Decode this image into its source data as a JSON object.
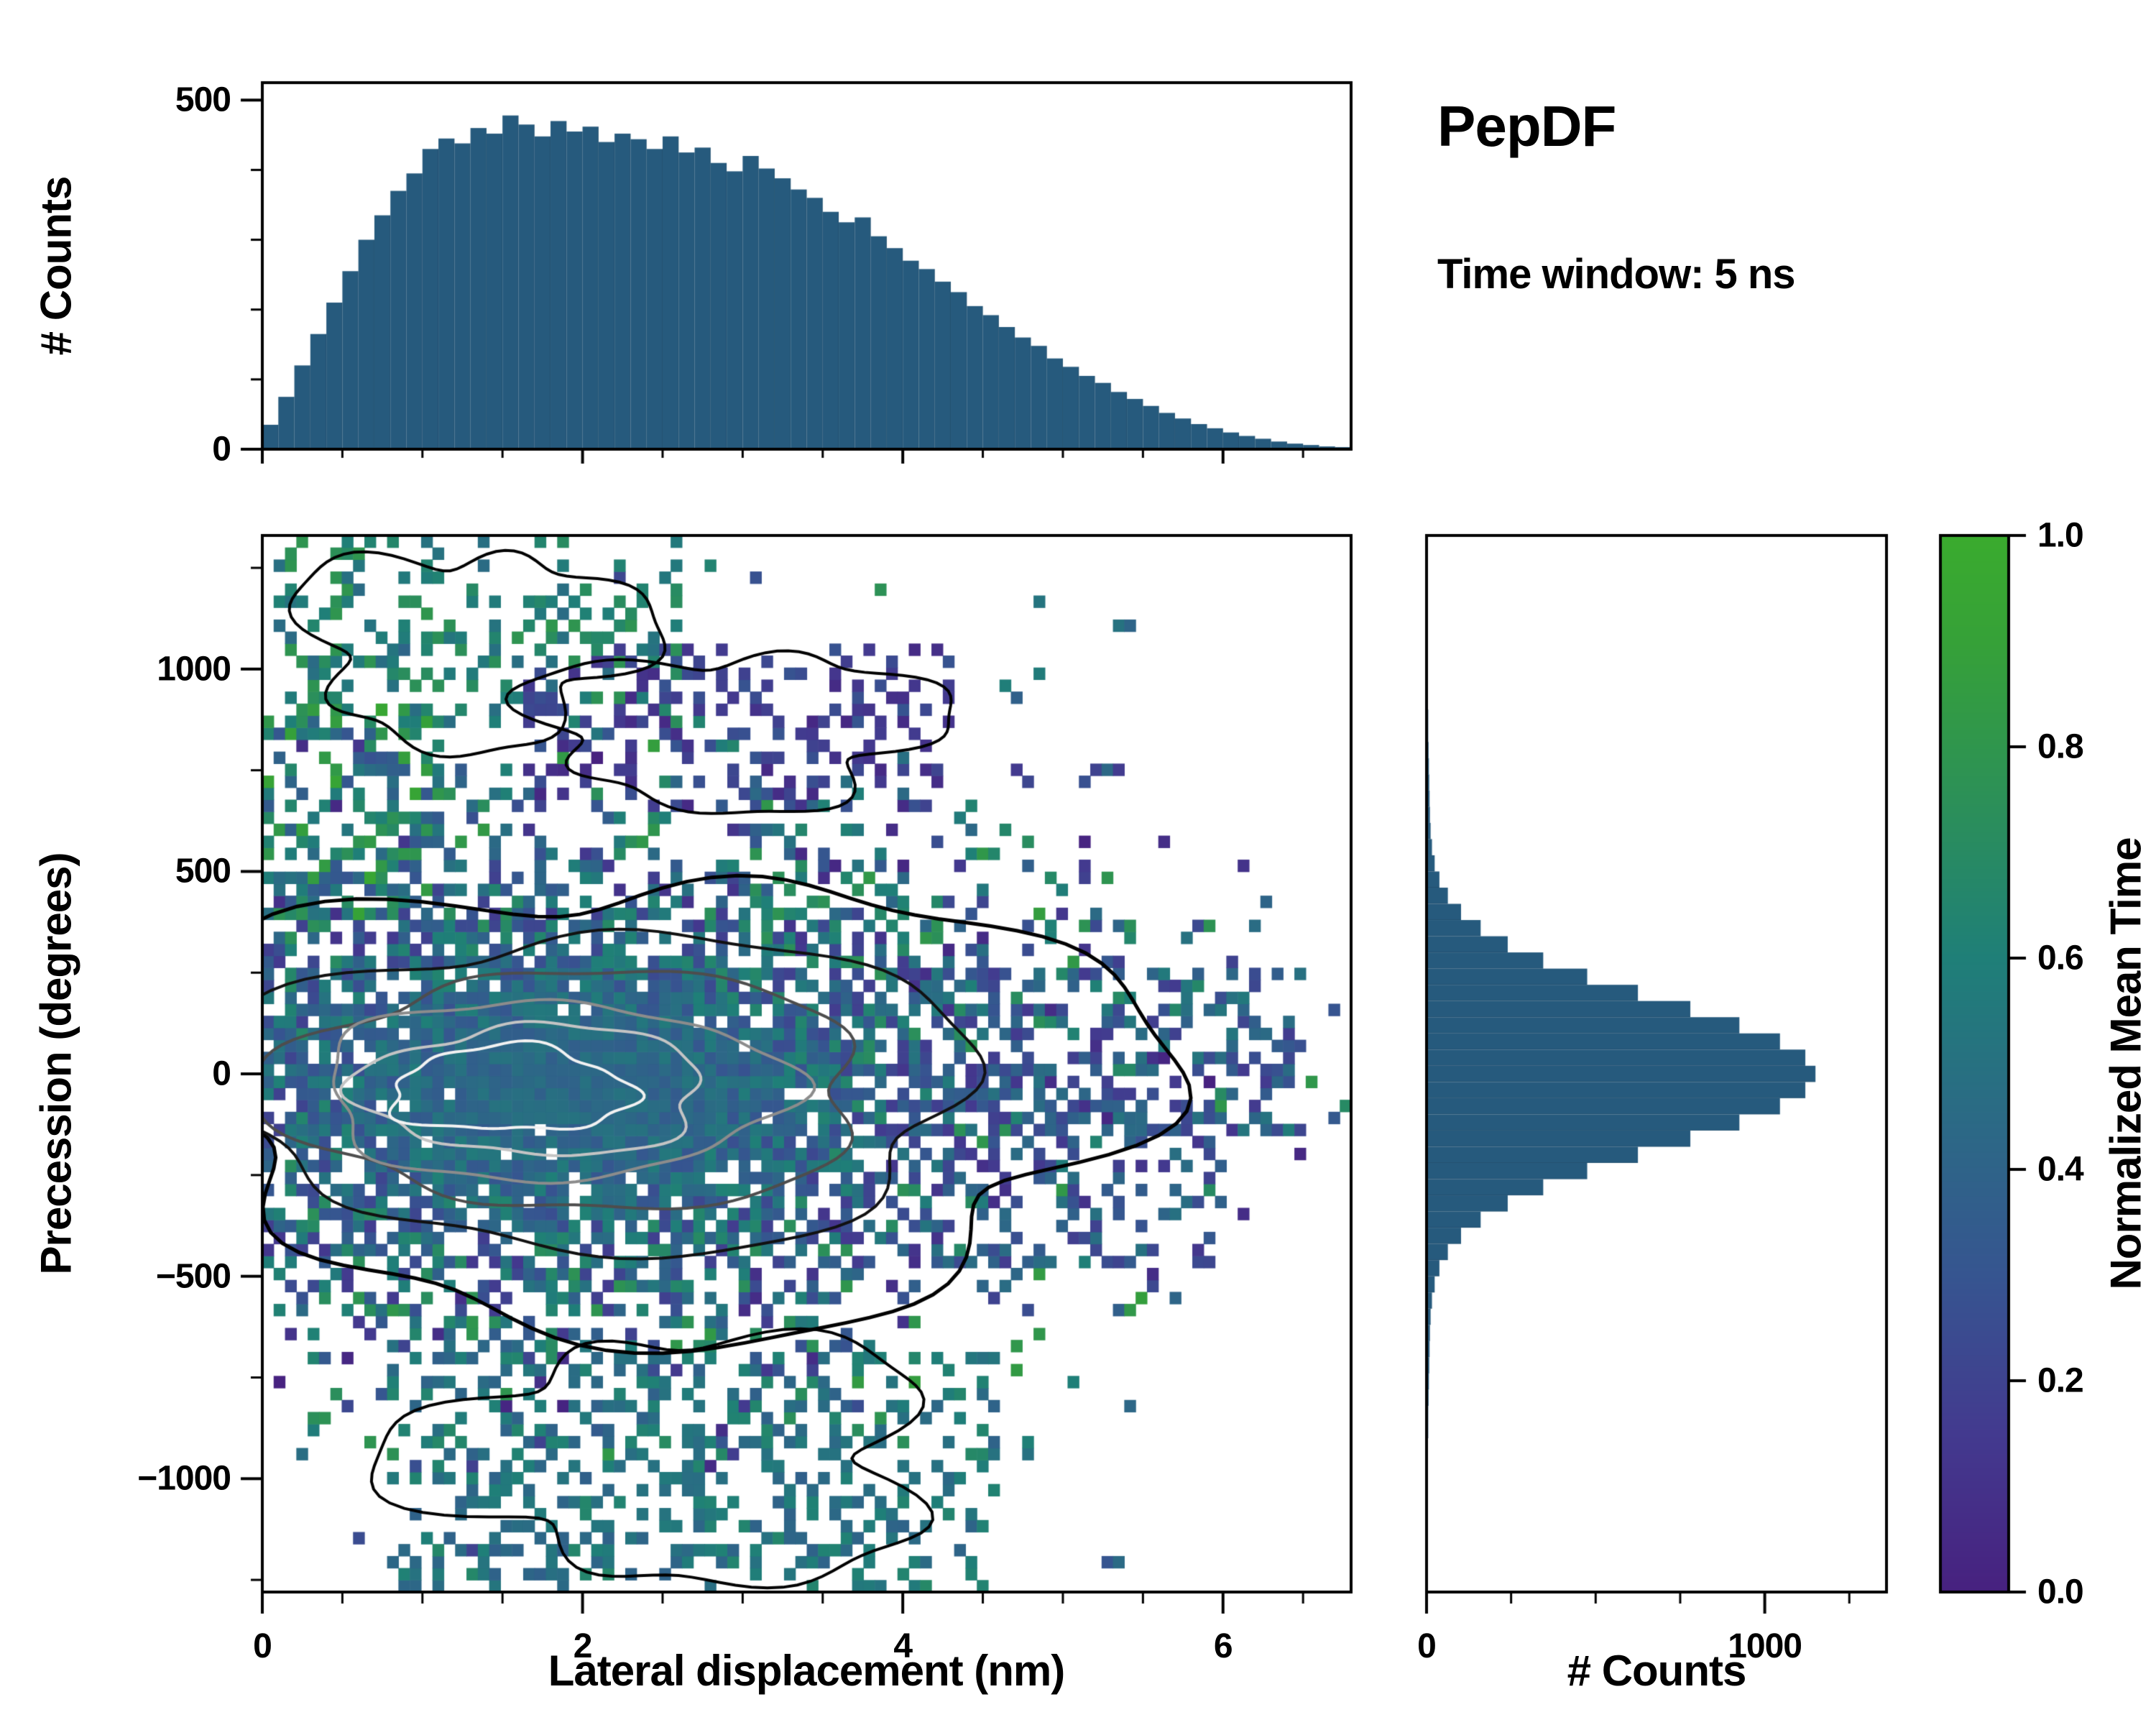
{
  "title": {
    "text": "PepDF",
    "subtitle": "Time window: 5 ns"
  },
  "colorbar": {
    "label": "Normalized Mean Time",
    "ticks": [
      0.0,
      0.2,
      0.4,
      0.6,
      0.8,
      1.0
    ],
    "range": [
      0,
      1
    ],
    "stops": [
      [
        0.0,
        "#47217f"
      ],
      [
        0.15,
        "#433a8f"
      ],
      [
        0.3,
        "#365590"
      ],
      [
        0.45,
        "#2b6a85"
      ],
      [
        0.6,
        "#1f7f78"
      ],
      [
        0.75,
        "#2c9058"
      ],
      [
        0.9,
        "#36a138"
      ],
      [
        1.0,
        "#3aab2e"
      ]
    ]
  },
  "chart_data": [
    {
      "type": "bar",
      "role": "top_marginal_histogram",
      "title": "",
      "xlabel": "",
      "ylabel": "# Counts",
      "x_range": [
        0,
        6.8
      ],
      "ylim": [
        0,
        525
      ],
      "bin_start": 0,
      "bin_width": 0.1,
      "bar_color": "#265a7d",
      "yticks": [
        0,
        500
      ],
      "xticks": [
        0,
        2,
        4,
        6
      ],
      "values": [
        35,
        75,
        120,
        165,
        210,
        255,
        300,
        335,
        370,
        395,
        430,
        445,
        438,
        460,
        452,
        478,
        465,
        448,
        470,
        455,
        462,
        440,
        452,
        444,
        430,
        448,
        425,
        432,
        410,
        398,
        420,
        402,
        388,
        372,
        360,
        340,
        325,
        332,
        305,
        288,
        270,
        258,
        240,
        225,
        205,
        192,
        175,
        160,
        148,
        130,
        118,
        105,
        95,
        82,
        72,
        62,
        52,
        44,
        36,
        30,
        24,
        19,
        15,
        11,
        8,
        6,
        4,
        3
      ]
    },
    {
      "type": "heatmap",
      "role": "joint_2d_histogram",
      "xlabel": "Lateral displacement (nm)",
      "ylabel": "Precession (degrees)",
      "x_range": [
        0,
        6.8
      ],
      "y_range": [
        -1280,
        1330
      ],
      "xticks": [
        0,
        2,
        4,
        6
      ],
      "yticks": [
        -1000,
        -500,
        0,
        500,
        1000
      ],
      "color_meaning": "Normalized Mean Time",
      "generation": {
        "seed": 1337,
        "nx": 96,
        "ny": 88,
        "core": {
          "cx": 1.9,
          "cy": -30,
          "sx": 1.5,
          "sy": 310
        },
        "fill_power": 0.55,
        "fill_gain": 1.12,
        "value_center": 0.44,
        "spread_core": 0.12,
        "spread_edge": 0.9,
        "hole_prob": 0.02,
        "scatter": {
          "p": 0.012,
          "x": [
            0,
            5.6
          ],
          "y": [
            -1250,
            1300
          ],
          "v": [
            0.2,
            0.8
          ]
        },
        "clusters": [
          {
            "x": [
              0.1,
              2.6
            ],
            "y": [
              850,
              1330
            ],
            "p": 0.32,
            "v": [
              0.45,
              0.8
            ]
          },
          {
            "x": [
              1.6,
              4.3
            ],
            "y": [
              640,
              1060
            ],
            "p": 0.3,
            "v": [
              0.04,
              0.3
            ]
          },
          {
            "x": [
              0.0,
              1.1
            ],
            "y": [
              380,
              900
            ],
            "p": 0.36,
            "v": [
              0.3,
              0.95
            ]
          },
          {
            "x": [
              0.8,
              4.6
            ],
            "y": [
              -1330,
              -680
            ],
            "p": 0.28,
            "v": [
              0.38,
              0.68
            ]
          },
          {
            "x": [
              3.9,
              6.5
            ],
            "y": [
              -140,
              260
            ],
            "p": 0.3,
            "v": [
              0.12,
              0.55
            ]
          },
          {
            "x": [
              4.2,
              6.0
            ],
            "y": [
              -470,
              -120
            ],
            "p": 0.22,
            "v": [
              0.08,
              0.5
            ]
          }
        ]
      },
      "contours": [
        {
          "cx": 2.5,
          "cy": -60,
          "rx": 3.0,
          "ry": 560,
          "color": "#000000",
          "width": 5,
          "wobble": 0.2
        },
        {
          "cx": 2.1,
          "cy": -40,
          "rx": 2.35,
          "ry": 390,
          "color": "#111111",
          "width": 4,
          "wobble": 0.14
        },
        {
          "cx": 1.95,
          "cy": -40,
          "rx": 1.85,
          "ry": 295,
          "color": "#4d4d4d",
          "width": 4,
          "wobble": 0.13
        },
        {
          "cx": 1.8,
          "cy": -40,
          "rx": 1.45,
          "ry": 220,
          "color": "#8c8c8c",
          "width": 4,
          "wobble": 0.13
        },
        {
          "cx": 1.7,
          "cy": -40,
          "rx": 1.08,
          "ry": 160,
          "color": "#c4c4c4",
          "width": 4,
          "wobble": 0.14
        },
        {
          "cx": 1.55,
          "cy": -40,
          "rx": 0.75,
          "ry": 105,
          "color": "#f2f2f2",
          "width": 4,
          "wobble": 0.18
        },
        {
          "cx": 1.3,
          "cy": 1060,
          "rx": 1.05,
          "ry": 240,
          "color": "#000000",
          "width": 4,
          "wobble": 0.3
        },
        {
          "cx": 2.95,
          "cy": 855,
          "rx": 1.25,
          "ry": 190,
          "color": "#000000",
          "width": 4,
          "wobble": 0.28
        },
        {
          "cx": 2.6,
          "cy": -950,
          "rx": 1.6,
          "ry": 300,
          "color": "#000000",
          "width": 4,
          "wobble": 0.3
        }
      ]
    },
    {
      "type": "bar",
      "role": "right_marginal_histogram",
      "orientation": "horizontal",
      "xlabel": "# Counts",
      "ylabel": "",
      "xlim": [
        0,
        1360
      ],
      "bin_start": -1300,
      "bin_width": 40,
      "bar_color": "#265a7d",
      "xticks": [
        0,
        1000
      ],
      "values": [
        1,
        1,
        1,
        1,
        2,
        2,
        3,
        3,
        4,
        4,
        5,
        5,
        6,
        7,
        8,
        9,
        10,
        12,
        16,
        24,
        38,
        63,
        102,
        160,
        240,
        345,
        475,
        625,
        780,
        925,
        1045,
        1120,
        1150,
        1120,
        1045,
        925,
        780,
        625,
        475,
        345,
        240,
        160,
        102,
        63,
        38,
        24,
        16,
        12,
        10,
        9,
        8,
        7,
        6,
        5,
        5,
        4,
        4,
        3,
        3,
        2,
        2,
        1,
        1,
        1,
        1
      ]
    }
  ]
}
